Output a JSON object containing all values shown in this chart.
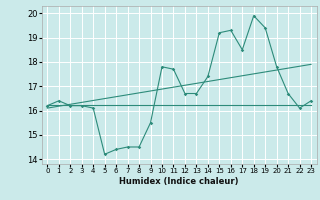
{
  "title": "",
  "xlabel": "Humidex (Indice chaleur)",
  "xlim": [
    -0.5,
    23.5
  ],
  "ylim": [
    13.8,
    20.3
  ],
  "yticks": [
    14,
    15,
    16,
    17,
    18,
    19,
    20
  ],
  "xticks": [
    0,
    1,
    2,
    3,
    4,
    5,
    6,
    7,
    8,
    9,
    10,
    11,
    12,
    13,
    14,
    15,
    16,
    17,
    18,
    19,
    20,
    21,
    22,
    23
  ],
  "background_color": "#cbeaea",
  "grid_color": "#ffffff",
  "line_color": "#2d8b7a",
  "main_line_x": [
    0,
    1,
    2,
    3,
    4,
    5,
    6,
    7,
    8,
    9,
    10,
    11,
    12,
    13,
    14,
    15,
    16,
    17,
    18,
    19,
    20,
    21,
    22,
    23
  ],
  "main_line_y": [
    16.2,
    16.4,
    16.2,
    16.2,
    16.1,
    14.2,
    14.4,
    14.5,
    14.5,
    15.5,
    17.8,
    17.7,
    16.7,
    16.7,
    17.4,
    19.2,
    19.3,
    18.5,
    19.9,
    19.4,
    17.8,
    16.7,
    16.1,
    16.4
  ],
  "flat_line_x": [
    0,
    23
  ],
  "flat_line_y": [
    16.22,
    16.22
  ],
  "regression_line_x": [
    0,
    23
  ],
  "regression_line_y": [
    16.1,
    17.9
  ]
}
